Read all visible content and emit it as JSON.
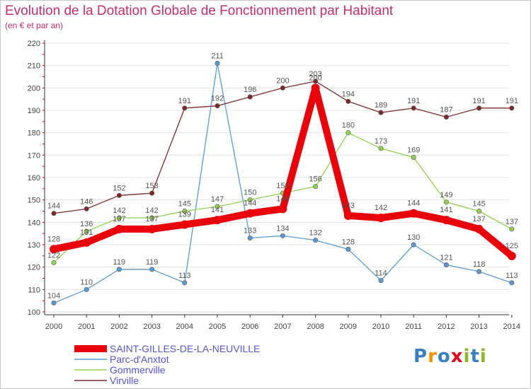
{
  "title": "Evolution de la Dotation Globale de Fonctionnement par Habitant",
  "subtitle": "(en € et par an)",
  "logo": {
    "text": "Proxiti",
    "colors": [
      "#3a7fc0",
      "#f39200",
      "#3a7fc0",
      "#e2001a",
      "#8cb82c",
      "#3a7fc0",
      "#8cb82c"
    ]
  },
  "chart_data": {
    "type": "line",
    "title": "Evolution de la Dotation Globale de Fonctionnement par Habitant",
    "subtitle": "(en € et par an)",
    "xlabel": "",
    "ylabel": "",
    "x": [
      "2000",
      "2001",
      "2002",
      "2003",
      "2004",
      "2005",
      "2006",
      "2007",
      "2008",
      "2009",
      "2010",
      "2011",
      "2012",
      "2013",
      "2014"
    ],
    "ylim": [
      100,
      220
    ],
    "yticks": [
      "100",
      "110",
      "120",
      "130",
      "140",
      "150",
      "160",
      "170",
      "180",
      "190",
      "200",
      "210",
      "220"
    ],
    "grid": "horizontal",
    "legend": "bottom-left",
    "series": [
      {
        "name": "SAINT-GILLES-DE-LA-NEUVILLE",
        "color": "#e8000a",
        "thick": true,
        "values": [
          128,
          131,
          137,
          137,
          139,
          141,
          144,
          146,
          200,
          143,
          142,
          144,
          141,
          137,
          125
        ],
        "labels": [
          "128",
          "131",
          "137",
          "137",
          "139",
          "141",
          "144",
          "146",
          "200",
          "143",
          "142",
          "144",
          "141",
          "137",
          "125"
        ]
      },
      {
        "name": "Parc-d'Anxtot",
        "color": "#5a9ad0",
        "thick": false,
        "values": [
          104,
          110,
          119,
          119,
          113,
          211,
          133,
          134,
          132,
          128,
          114,
          130,
          121,
          118,
          113
        ],
        "labels": [
          "104",
          "110",
          "119",
          "119",
          "113",
          "211",
          "133",
          "134",
          "132",
          "128",
          "114",
          "130",
          "121",
          "118",
          "113"
        ]
      },
      {
        "name": "Gommerville",
        "color": "#92d050",
        "thick": false,
        "values": [
          122,
          136,
          142,
          142,
          145,
          147,
          150,
          153,
          156,
          180,
          173,
          169,
          149,
          145,
          137
        ],
        "labels": [
          "122",
          "136",
          "142",
          "142",
          "145",
          "147",
          "150",
          "153",
          "156",
          "180",
          "173",
          "169",
          "149",
          "145",
          "137"
        ]
      },
      {
        "name": "Virville",
        "color": "#7a2a2a",
        "thick": false,
        "values": [
          144,
          146,
          152,
          153,
          191,
          192,
          196,
          200,
          203,
          194,
          189,
          191,
          187,
          191,
          191
        ],
        "labels": [
          "144",
          "146",
          "152",
          "153",
          "191",
          "192",
          "196",
          "200",
          "203",
          "194",
          "189",
          "191",
          "187",
          "191",
          "191"
        ]
      }
    ]
  }
}
